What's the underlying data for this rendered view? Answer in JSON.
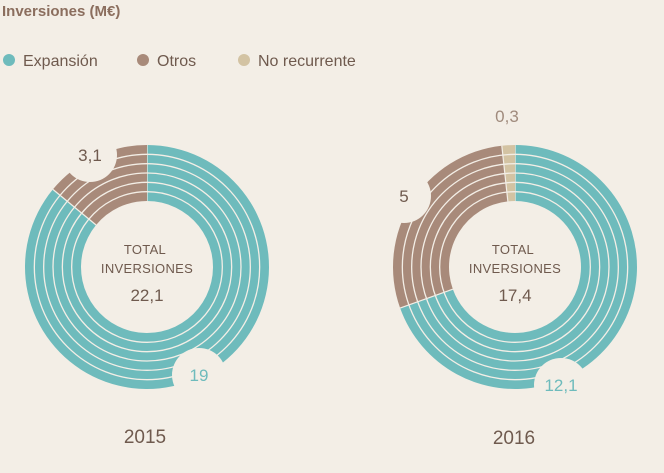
{
  "chart_data": {
    "type": "pie",
    "title": "Inversiones (M€)",
    "legend": [
      {
        "key": "expansion",
        "label": "Expansión",
        "color": "#6ebbbc"
      },
      {
        "key": "otros",
        "label": "Otros",
        "color": "#a88a7a"
      },
      {
        "key": "no_recurrente",
        "label": "No recurrente",
        "color": "#d3c3a3"
      }
    ],
    "charts": [
      {
        "year": "2015",
        "center_label": [
          "TOTAL",
          "INVERSIONES"
        ],
        "total": 22.1,
        "total_label": "22,1",
        "slices": [
          {
            "series": "expansion",
            "value": 19,
            "label": "19"
          },
          {
            "series": "otros",
            "value": 3.1,
            "label": "3,1"
          }
        ]
      },
      {
        "year": "2016",
        "center_label": [
          "TOTAL",
          "INVERSIONES"
        ],
        "total": 17.4,
        "total_label": "17,4",
        "slices": [
          {
            "series": "expansion",
            "value": 12.1,
            "label": "12,1"
          },
          {
            "series": "otros",
            "value": 5,
            "label": "5"
          },
          {
            "series": "no_recurrente",
            "value": 0.3,
            "label": "0,3"
          }
        ]
      }
    ]
  }
}
